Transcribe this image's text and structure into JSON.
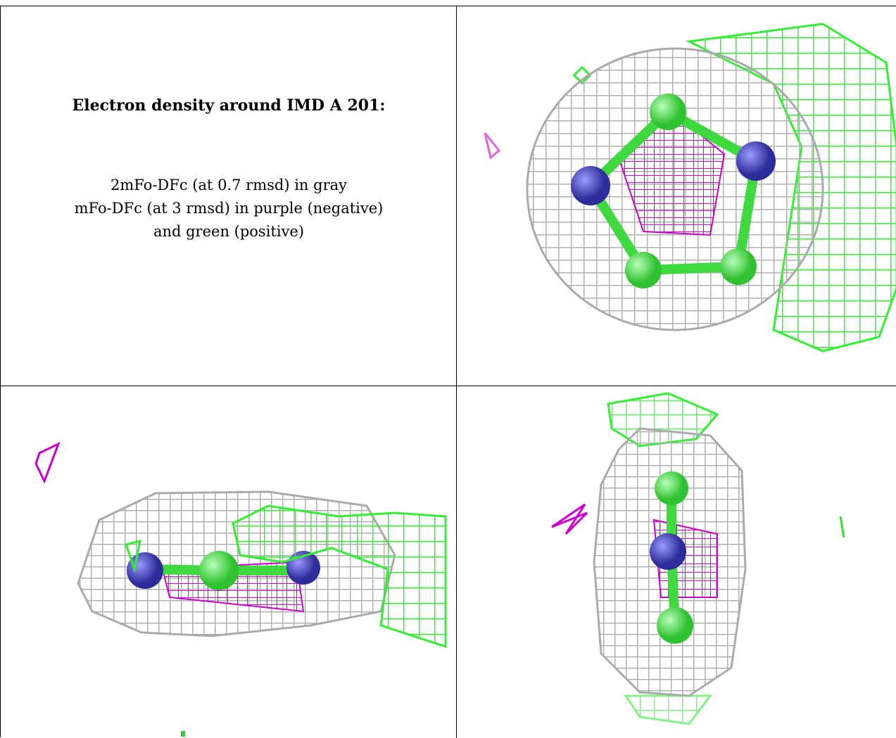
{
  "caption": {
    "title": "Electron density around IMD A 201:",
    "line1": "2mFo-DFc (at 0.7 rmsd) in gray",
    "line2": "mFo-DFc (at 3 rmsd) in purple (negative)",
    "line3": "and green (positive)"
  },
  "colors": {
    "map_2fofc": "#b8b8b8",
    "map_fofc_negative": "#cc00cc",
    "map_fofc_positive": "#33ff33",
    "atom_carbon": "#66e066",
    "atom_nitrogen": "#4a4ad8",
    "border": "#000000"
  },
  "panels": [
    {
      "view": "top"
    },
    {
      "view": "side"
    },
    {
      "view": "end"
    }
  ]
}
